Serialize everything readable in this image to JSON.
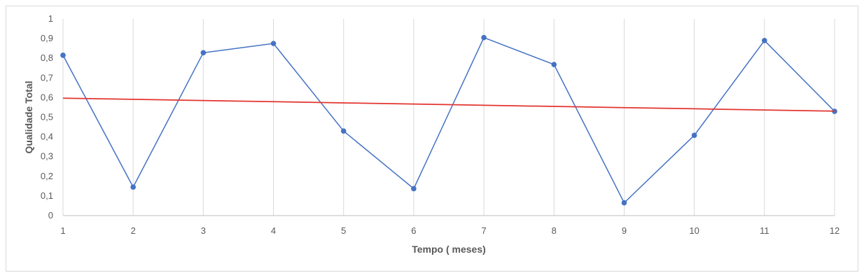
{
  "chart_data": {
    "type": "line",
    "title": "",
    "xlabel": "Tempo ( meses)",
    "ylabel": "Qualidade Total",
    "x": [
      1,
      2,
      3,
      4,
      5,
      6,
      7,
      8,
      9,
      10,
      11,
      12
    ],
    "x_tick_labels": [
      "1",
      "2",
      "3",
      "4",
      "5",
      "6",
      "7",
      "8",
      "9",
      "10",
      "11",
      "12"
    ],
    "y_tick_labels": [
      "0",
      "0,1",
      "0,2",
      "0,3",
      "0,4",
      "0,5",
      "0,6",
      "0,7",
      "0,8",
      "0,9",
      "1"
    ],
    "ylim": [
      0,
      1
    ],
    "xlim": [
      1,
      12
    ],
    "grid": "vertical",
    "legend": "none",
    "series": [
      {
        "values": [
          0.815,
          0.145,
          0.828,
          0.875,
          0.43,
          0.137,
          0.905,
          0.768,
          0.065,
          0.408,
          0.89,
          0.53
        ],
        "color": "#4472C4",
        "markers": true
      },
      {
        "kind": "trendline",
        "values": [
          0.597,
          0.591,
          0.585,
          0.579,
          0.573,
          0.567,
          0.561,
          0.555,
          0.549,
          0.543,
          0.537,
          0.531
        ],
        "color": "#E3342F",
        "markers": false
      }
    ]
  }
}
